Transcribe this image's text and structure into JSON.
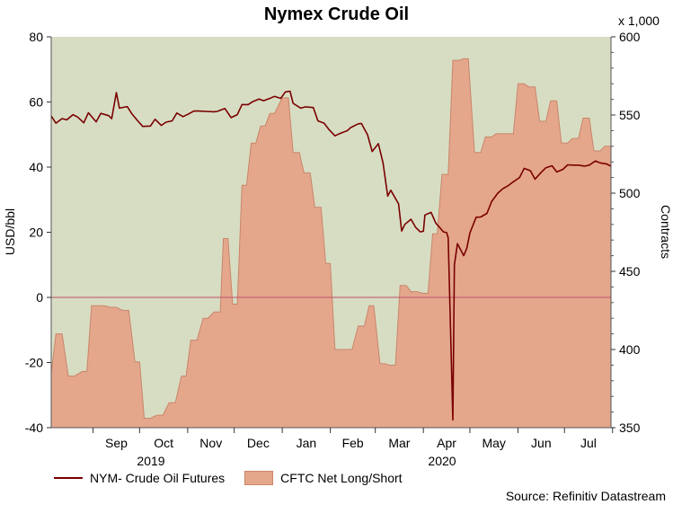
{
  "title": "Nymex Crude Oil",
  "right_axis_unit": "x 1,000",
  "source": "Source: Refinitiv Datastream",
  "colors": {
    "line": "#7a0000",
    "area_fill": "#e4a78c",
    "area_stroke": "#c9856a",
    "plot_bg": "#d7ddc3",
    "zero_line": "#c0506a"
  },
  "chart_data": {
    "type": "line+area",
    "title": "Nymex Crude Oil",
    "ylabel_left": "USD/bbl",
    "ylabel_right": "Contracts",
    "ylim_left": [
      -40,
      80
    ],
    "ylim_right": [
      350,
      600
    ],
    "yticks_left": [
      "80",
      "60",
      "40",
      "20",
      "0",
      "-20",
      "-40"
    ],
    "yticks_right": [
      "600",
      "550",
      "500",
      "450",
      "400",
      "350"
    ],
    "x_range": [
      "2019-08-05",
      "2020-07-31"
    ],
    "month_labels": [
      "Sep",
      "Oct",
      "Nov",
      "Dec",
      "Jan",
      "Feb",
      "Mar",
      "Apr",
      "May",
      "Jun",
      "Jul"
    ],
    "year_labels": [
      "2019",
      "2020"
    ],
    "grid": false,
    "legend_position": "bottom-left",
    "series": [
      {
        "name": "NYM- Crude Oil Futures",
        "type": "line",
        "axis": "left",
        "points": [
          [
            "2019-08-05",
            55.7
          ],
          [
            "2019-08-08",
            53.5
          ],
          [
            "2019-08-12",
            54.9
          ],
          [
            "2019-08-15",
            54.5
          ],
          [
            "2019-08-19",
            56.1
          ],
          [
            "2019-08-22",
            55.4
          ],
          [
            "2019-08-26",
            53.6
          ],
          [
            "2019-08-29",
            56.7
          ],
          [
            "2019-09-03",
            53.9
          ],
          [
            "2019-09-06",
            56.5
          ],
          [
            "2019-09-11",
            55.8
          ],
          [
            "2019-09-13",
            54.9
          ],
          [
            "2019-09-16",
            62.9
          ],
          [
            "2019-09-18",
            58.1
          ],
          [
            "2019-09-23",
            58.6
          ],
          [
            "2019-09-26",
            56.4
          ],
          [
            "2019-09-30",
            54.1
          ],
          [
            "2019-10-03",
            52.5
          ],
          [
            "2019-10-08",
            52.6
          ],
          [
            "2019-10-11",
            54.7
          ],
          [
            "2019-10-15",
            52.8
          ],
          [
            "2019-10-18",
            53.8
          ],
          [
            "2019-10-22",
            54.2
          ],
          [
            "2019-10-25",
            56.6
          ],
          [
            "2019-10-29",
            55.5
          ],
          [
            "2019-11-01",
            56.2
          ],
          [
            "2019-11-05",
            57.2
          ],
          [
            "2019-11-08",
            57.2
          ],
          [
            "2019-11-13",
            57.1
          ],
          [
            "2019-11-18",
            57.0
          ],
          [
            "2019-11-20",
            57.1
          ],
          [
            "2019-11-25",
            58.0
          ],
          [
            "2019-11-29",
            55.2
          ],
          [
            "2019-12-03",
            56.1
          ],
          [
            "2019-12-06",
            59.2
          ],
          [
            "2019-12-10",
            59.2
          ],
          [
            "2019-12-13",
            60.1
          ],
          [
            "2019-12-17",
            60.9
          ],
          [
            "2019-12-20",
            60.4
          ],
          [
            "2019-12-24",
            61.1
          ],
          [
            "2019-12-27",
            61.7
          ],
          [
            "2019-12-31",
            61.1
          ],
          [
            "2020-01-03",
            63.1
          ],
          [
            "2020-01-06",
            63.3
          ],
          [
            "2020-01-08",
            59.6
          ],
          [
            "2020-01-13",
            58.1
          ],
          [
            "2020-01-16",
            58.5
          ],
          [
            "2020-01-21",
            58.3
          ],
          [
            "2020-01-24",
            54.2
          ],
          [
            "2020-01-28",
            53.5
          ],
          [
            "2020-01-31",
            51.6
          ],
          [
            "2020-02-04",
            49.6
          ],
          [
            "2020-02-07",
            50.3
          ],
          [
            "2020-02-12",
            51.2
          ],
          [
            "2020-02-14",
            52.1
          ],
          [
            "2020-02-19",
            53.3
          ],
          [
            "2020-02-21",
            53.4
          ],
          [
            "2020-02-25",
            49.9
          ],
          [
            "2020-02-28",
            44.8
          ],
          [
            "2020-03-03",
            47.2
          ],
          [
            "2020-03-06",
            41.3
          ],
          [
            "2020-03-09",
            31.1
          ],
          [
            "2020-03-11",
            32.9
          ],
          [
            "2020-03-16",
            28.7
          ],
          [
            "2020-03-18",
            20.4
          ],
          [
            "2020-03-20",
            22.4
          ],
          [
            "2020-03-24",
            24.0
          ],
          [
            "2020-03-27",
            21.5
          ],
          [
            "2020-03-30",
            20.1
          ],
          [
            "2020-04-01",
            20.3
          ],
          [
            "2020-04-02",
            25.3
          ],
          [
            "2020-04-06",
            26.1
          ],
          [
            "2020-04-09",
            22.8
          ],
          [
            "2020-04-14",
            20.1
          ],
          [
            "2020-04-16",
            19.9
          ],
          [
            "2020-04-17",
            18.3
          ],
          [
            "2020-04-20",
            -37.6
          ],
          [
            "2020-04-21",
            10.0
          ],
          [
            "2020-04-23",
            16.5
          ],
          [
            "2020-04-27",
            12.8
          ],
          [
            "2020-04-29",
            15.1
          ],
          [
            "2020-05-01",
            19.8
          ],
          [
            "2020-05-05",
            24.6
          ],
          [
            "2020-05-08",
            24.7
          ],
          [
            "2020-05-12",
            25.8
          ],
          [
            "2020-05-15",
            29.4
          ],
          [
            "2020-05-19",
            32.0
          ],
          [
            "2020-05-22",
            33.3
          ],
          [
            "2020-05-26",
            34.4
          ],
          [
            "2020-05-29",
            35.5
          ],
          [
            "2020-06-02",
            36.8
          ],
          [
            "2020-06-05",
            39.6
          ],
          [
            "2020-06-09",
            38.9
          ],
          [
            "2020-06-12",
            36.3
          ],
          [
            "2020-06-16",
            38.4
          ],
          [
            "2020-06-19",
            39.8
          ],
          [
            "2020-06-23",
            40.4
          ],
          [
            "2020-06-26",
            38.5
          ],
          [
            "2020-06-30",
            39.3
          ],
          [
            "2020-07-03",
            40.7
          ],
          [
            "2020-07-07",
            40.6
          ],
          [
            "2020-07-10",
            40.6
          ],
          [
            "2020-07-14",
            40.3
          ],
          [
            "2020-07-17",
            40.6
          ],
          [
            "2020-07-21",
            41.9
          ],
          [
            "2020-07-24",
            41.3
          ],
          [
            "2020-07-28",
            41.0
          ],
          [
            "2020-07-31",
            40.3
          ]
        ]
      },
      {
        "name": "CFTC Net Long/Short",
        "type": "area-step",
        "axis": "right",
        "points": [
          [
            "2019-08-05",
            384
          ],
          [
            "2019-08-08",
            410
          ],
          [
            "2019-08-12",
            410
          ],
          [
            "2019-08-16",
            383
          ],
          [
            "2019-08-20",
            383
          ],
          [
            "2019-08-25",
            386
          ],
          [
            "2019-08-28",
            386
          ],
          [
            "2019-08-31",
            428
          ],
          [
            "2019-09-04",
            428
          ],
          [
            "2019-09-08",
            428
          ],
          [
            "2019-09-12",
            427
          ],
          [
            "2019-09-16",
            427
          ],
          [
            "2019-09-20",
            425
          ],
          [
            "2019-09-24",
            425
          ],
          [
            "2019-09-28",
            392
          ],
          [
            "2019-10-01",
            392
          ],
          [
            "2019-10-04",
            356
          ],
          [
            "2019-10-08",
            356
          ],
          [
            "2019-10-12",
            358
          ],
          [
            "2019-10-16",
            358
          ],
          [
            "2019-10-20",
            366
          ],
          [
            "2019-10-24",
            366
          ],
          [
            "2019-10-28",
            383
          ],
          [
            "2019-10-31",
            383
          ],
          [
            "2019-11-03",
            406
          ],
          [
            "2019-11-07",
            406
          ],
          [
            "2019-11-11",
            420
          ],
          [
            "2019-11-14",
            420
          ],
          [
            "2019-11-18",
            424
          ],
          [
            "2019-11-22",
            424
          ],
          [
            "2019-11-24",
            471
          ],
          [
            "2019-11-27",
            471
          ],
          [
            "2019-11-30",
            429
          ],
          [
            "2019-12-03",
            429
          ],
          [
            "2019-12-06",
            505
          ],
          [
            "2019-12-09",
            505
          ],
          [
            "2019-12-12",
            532
          ],
          [
            "2019-12-15",
            532
          ],
          [
            "2019-12-18",
            543
          ],
          [
            "2019-12-21",
            543
          ],
          [
            "2019-12-24",
            551
          ],
          [
            "2019-12-27",
            551
          ],
          [
            "2020-01-01",
            561
          ],
          [
            "2020-01-05",
            561
          ],
          [
            "2020-01-08",
            526
          ],
          [
            "2020-01-12",
            526
          ],
          [
            "2020-01-15",
            513
          ],
          [
            "2020-01-19",
            513
          ],
          [
            "2020-01-22",
            491
          ],
          [
            "2020-01-26",
            491
          ],
          [
            "2020-01-29",
            455
          ],
          [
            "2020-02-01",
            455
          ],
          [
            "2020-02-04",
            400
          ],
          [
            "2020-02-08",
            400
          ],
          [
            "2020-02-11",
            400
          ],
          [
            "2020-02-15",
            400
          ],
          [
            "2020-02-19",
            415
          ],
          [
            "2020-02-23",
            415
          ],
          [
            "2020-02-26",
            428
          ],
          [
            "2020-02-29",
            428
          ],
          [
            "2020-03-04",
            391
          ],
          [
            "2020-03-07",
            391
          ],
          [
            "2020-03-10",
            390
          ],
          [
            "2020-03-14",
            390
          ],
          [
            "2020-03-17",
            441
          ],
          [
            "2020-03-21",
            441
          ],
          [
            "2020-03-24",
            437
          ],
          [
            "2020-03-28",
            437
          ],
          [
            "2020-03-31",
            436
          ],
          [
            "2020-04-04",
            436
          ],
          [
            "2020-04-07",
            474
          ],
          [
            "2020-04-10",
            474
          ],
          [
            "2020-04-13",
            512
          ],
          [
            "2020-04-17",
            512
          ],
          [
            "2020-04-20",
            585
          ],
          [
            "2020-04-24",
            585
          ],
          [
            "2020-04-27",
            586
          ],
          [
            "2020-04-30",
            586
          ],
          [
            "2020-05-04",
            526
          ],
          [
            "2020-05-08",
            526
          ],
          [
            "2020-05-11",
            536
          ],
          [
            "2020-05-15",
            536
          ],
          [
            "2020-05-18",
            538
          ],
          [
            "2020-05-22",
            538
          ],
          [
            "2020-05-25",
            538
          ],
          [
            "2020-05-29",
            538
          ],
          [
            "2020-06-01",
            570
          ],
          [
            "2020-06-05",
            570
          ],
          [
            "2020-06-08",
            568
          ],
          [
            "2020-06-12",
            568
          ],
          [
            "2020-06-15",
            546
          ],
          [
            "2020-06-19",
            546
          ],
          [
            "2020-06-22",
            559
          ],
          [
            "2020-06-26",
            559
          ],
          [
            "2020-06-29",
            532
          ],
          [
            "2020-07-03",
            532
          ],
          [
            "2020-07-06",
            535
          ],
          [
            "2020-07-10",
            535
          ],
          [
            "2020-07-13",
            548
          ],
          [
            "2020-07-17",
            548
          ],
          [
            "2020-07-20",
            527
          ],
          [
            "2020-07-24",
            527
          ],
          [
            "2020-07-27",
            530
          ],
          [
            "2020-07-31",
            530
          ]
        ]
      }
    ]
  }
}
